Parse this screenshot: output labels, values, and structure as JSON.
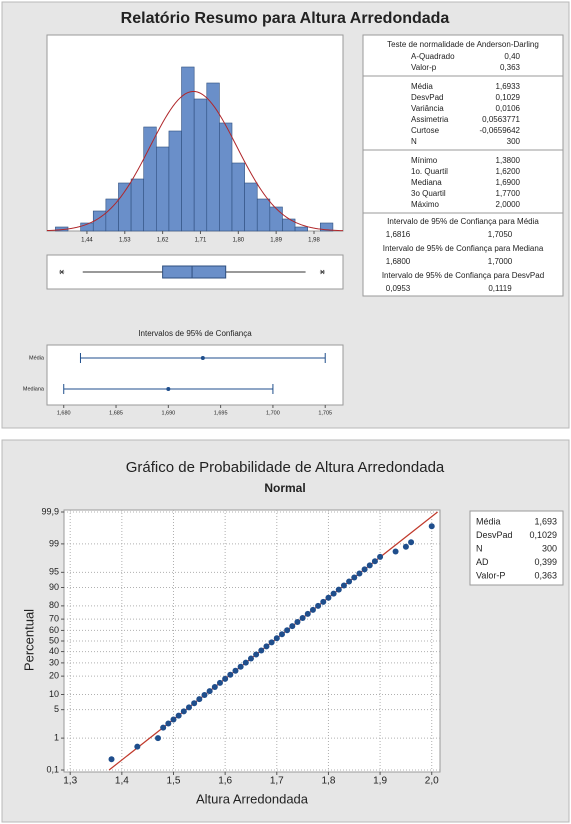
{
  "report": {
    "title": "Relatório Resumo para Altura Arredondada"
  },
  "chart_data": [
    {
      "type": "histogram",
      "bins": [
        1.365,
        1.395,
        1.425,
        1.455,
        1.485,
        1.515,
        1.545,
        1.575,
        1.605,
        1.635,
        1.665,
        1.695,
        1.725,
        1.755,
        1.785,
        1.815,
        1.845,
        1.875,
        1.905,
        1.935,
        1.965,
        1.995,
        2.025
      ],
      "values": [
        1,
        0,
        2,
        5,
        8,
        12,
        13,
        26,
        21,
        25,
        41,
        33,
        37,
        27,
        17,
        12,
        8,
        6,
        3,
        1,
        0,
        2
      ],
      "color": "#6a8fc9",
      "curve_color": "#b0272b",
      "normal_fit": {
        "mean": 1.6933,
        "sd": 0.1029
      },
      "xlim": [
        1.345,
        2.049
      ],
      "ylim": [
        0,
        49
      ],
      "xticks": [
        {
          "value": 1.44,
          "label": "1,44"
        },
        {
          "value": 1.53,
          "label": "1,53"
        },
        {
          "value": 1.62,
          "label": "1,62"
        },
        {
          "value": 1.71,
          "label": "1,71"
        },
        {
          "value": 1.8,
          "label": "1,80"
        },
        {
          "value": 1.89,
          "label": "1,89"
        },
        {
          "value": 1.98,
          "label": "1,98"
        }
      ]
    },
    {
      "type": "boxplot",
      "color": "#6a8fc9",
      "xlim": [
        1.345,
        2.049
      ],
      "whisker_low": 1.43,
      "q1": 1.62,
      "median": 1.69,
      "q3": 1.77,
      "whisker_high": 1.96,
      "outliers": [
        1.38,
        2.0
      ]
    },
    {
      "type": "interval",
      "title": "Intervalos de 95% de Confiança",
      "categories": [
        "Média",
        "Mediana"
      ],
      "values": [
        1.6933,
        1.69
      ],
      "lower": [
        1.6816,
        1.68
      ],
      "upper": [
        1.705,
        1.7
      ],
      "color": "#1f4e8c",
      "xlim": [
        1.6784,
        1.7067
      ],
      "xticks": [
        {
          "value": 1.68,
          "label": "1,680"
        },
        {
          "value": 1.685,
          "label": "1,685"
        },
        {
          "value": 1.69,
          "label": "1,690"
        },
        {
          "value": 1.695,
          "label": "1,695"
        },
        {
          "value": 1.7,
          "label": "1,700"
        },
        {
          "value": 1.705,
          "label": "1,705"
        }
      ]
    },
    {
      "type": "probability",
      "title": "Gráfico de Probabilidade de Altura Arredondada",
      "subtitle": "Normal",
      "x_label": "Altura Arredondada",
      "y_label": "Percentual",
      "x": [
        1.38,
        1.43,
        1.47,
        1.48,
        1.49,
        1.5,
        1.51,
        1.52,
        1.53,
        1.54,
        1.55,
        1.56,
        1.57,
        1.58,
        1.59,
        1.6,
        1.61,
        1.62,
        1.63,
        1.64,
        1.65,
        1.66,
        1.67,
        1.68,
        1.69,
        1.7,
        1.71,
        1.72,
        1.73,
        1.74,
        1.75,
        1.76,
        1.77,
        1.78,
        1.79,
        1.8,
        1.81,
        1.82,
        1.83,
        1.84,
        1.85,
        1.86,
        1.87,
        1.88,
        1.89,
        1.9,
        1.93,
        1.95,
        1.96,
        2.0
      ],
      "values": [
        0.23,
        0.57,
        1.0,
        1.9,
        2.4,
        3.0,
        3.7,
        4.6,
        5.6,
        6.8,
        8.2,
        9.8,
        11.5,
        13.5,
        15.8,
        18.2,
        20.9,
        23.8,
        26.9,
        30.2,
        33.7,
        37.3,
        41.0,
        44.9,
        48.7,
        52.6,
        56.4,
        60.2,
        63.9,
        67.5,
        70.9,
        74.2,
        77.2,
        80.0,
        82.6,
        85.0,
        87.2,
        89.1,
        90.8,
        92.3,
        93.6,
        94.7,
        95.7,
        96.5,
        97.2,
        97.8,
        98.4,
        98.8,
        99.1,
        99.7
      ],
      "color": "#1f4e8c",
      "line_color": "#c0392b",
      "grid": true,
      "y_scale": "normal-probability",
      "fit": {
        "mean": 1.6933,
        "sd": 0.1029
      },
      "xlim": [
        1.288,
        2.016
      ],
      "ylim": [
        0.1,
        99.9
      ],
      "xticks": [
        {
          "value": 1.3,
          "label": "1,3"
        },
        {
          "value": 1.4,
          "label": "1,4"
        },
        {
          "value": 1.5,
          "label": "1,5"
        },
        {
          "value": 1.6,
          "label": "1,6"
        },
        {
          "value": 1.7,
          "label": "1,7"
        },
        {
          "value": 1.8,
          "label": "1,8"
        },
        {
          "value": 1.9,
          "label": "1,9"
        },
        {
          "value": 2.0,
          "label": "2,0"
        }
      ],
      "yticks": [
        {
          "value": 0.1,
          "label": "0,1"
        },
        1,
        5,
        10,
        20,
        30,
        40,
        50,
        60,
        70,
        80,
        90,
        95,
        99,
        {
          "value": 99.9,
          "label": "99,9"
        }
      ]
    }
  ],
  "stats_table": {
    "normality": {
      "title": "Teste de normalidade de Anderson-Darling",
      "rows": [
        [
          "A-Quadrado",
          "0,40"
        ],
        [
          "Valor-p",
          "0,363"
        ]
      ]
    },
    "groups": [
      [
        [
          "Média",
          "1,6933"
        ],
        [
          "DesvPad",
          "0,1029"
        ],
        [
          "Variância",
          "0,0106"
        ],
        [
          "Assimetria",
          "0,0563771"
        ],
        [
          "Curtose",
          "-0,0659642"
        ],
        [
          "N",
          "300"
        ]
      ],
      [
        [
          "Mínimo",
          "1,3800"
        ],
        [
          "1o. Quartil",
          "1,6200"
        ],
        [
          "Mediana",
          "1,6900"
        ],
        [
          "3o Quartil",
          "1,7700"
        ],
        [
          "Máximo",
          "2,0000"
        ]
      ]
    ],
    "intervals": [
      {
        "title": "Intervalo de 95% de Confiança para Média",
        "values": [
          "1,6816",
          "1,7050"
        ]
      },
      {
        "title": "Intervalo de 95% de Confiança  para Mediana",
        "values": [
          "1,6800",
          "1,7000"
        ]
      },
      {
        "title": "Intervalo de 95% de Confiança  para DesvPad",
        "values": [
          "0,0953",
          "0,1119"
        ]
      }
    ]
  },
  "probability_legend": {
    "rows": [
      [
        "Média",
        "1,693"
      ],
      [
        "DesvPad",
        "0,1029"
      ],
      [
        "N",
        "300"
      ],
      [
        "AD",
        "0,399"
      ],
      [
        "Valor-P",
        "0,363"
      ]
    ]
  }
}
